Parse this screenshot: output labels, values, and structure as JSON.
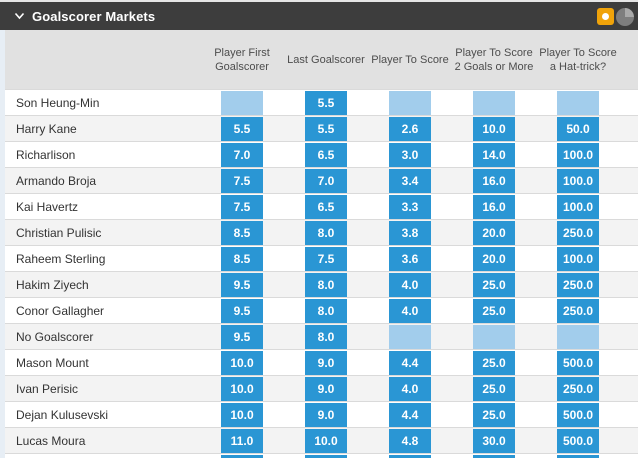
{
  "header": {
    "title": "Goalscorer Markets",
    "icons": [
      "chevron-down",
      "bet-boost-ball",
      "match-clock"
    ]
  },
  "table": {
    "columns": [
      "Player First Goalscorer",
      "Last Goalscorer",
      "Player To Score",
      "Player To Score 2 Goals or More",
      "Player To Score a Hat-trick?"
    ],
    "rows": [
      {
        "name": "Son Heung-Min",
        "odds": [
          null,
          "5.5",
          null,
          null,
          null
        ]
      },
      {
        "name": "Harry Kane",
        "odds": [
          "5.5",
          "5.5",
          "2.6",
          "10.0",
          "50.0"
        ]
      },
      {
        "name": "Richarlison",
        "odds": [
          "7.0",
          "6.5",
          "3.0",
          "14.0",
          "100.0"
        ]
      },
      {
        "name": "Armando Broja",
        "odds": [
          "7.5",
          "7.0",
          "3.4",
          "16.0",
          "100.0"
        ]
      },
      {
        "name": "Kai Havertz",
        "odds": [
          "7.5",
          "6.5",
          "3.3",
          "16.0",
          "100.0"
        ]
      },
      {
        "name": "Christian Pulisic",
        "odds": [
          "8.5",
          "8.0",
          "3.8",
          "20.0",
          "250.0"
        ]
      },
      {
        "name": "Raheem Sterling",
        "odds": [
          "8.5",
          "7.5",
          "3.6",
          "20.0",
          "100.0"
        ]
      },
      {
        "name": "Hakim Ziyech",
        "odds": [
          "9.5",
          "8.0",
          "4.0",
          "25.0",
          "250.0"
        ]
      },
      {
        "name": "Conor Gallagher",
        "odds": [
          "9.5",
          "8.0",
          "4.0",
          "25.0",
          "250.0"
        ]
      },
      {
        "name": "No Goalscorer",
        "odds": [
          "9.5",
          "8.0",
          null,
          null,
          null
        ]
      },
      {
        "name": "Mason Mount",
        "odds": [
          "10.0",
          "9.0",
          "4.4",
          "25.0",
          "500.0"
        ]
      },
      {
        "name": "Ivan Perisic",
        "odds": [
          "10.0",
          "9.0",
          "4.0",
          "25.0",
          "250.0"
        ]
      },
      {
        "name": "Dejan Kulusevski",
        "odds": [
          "10.0",
          "9.0",
          "4.4",
          "25.0",
          "500.0"
        ]
      },
      {
        "name": "Lucas Moura",
        "odds": [
          "11.0",
          "10.0",
          "4.8",
          "30.0",
          "500.0"
        ]
      }
    ],
    "partial_bottom_row": {
      "visible_cells": 5
    }
  },
  "colors": {
    "bar_background": "#3d3d3d",
    "odds_available": "#2a96d4",
    "odds_suspended": "#a2cdec",
    "row_alt": "#f3f3f3",
    "column_header_bg": "#e1e1e1",
    "boost_icon_yellow": "#f0a30a"
  }
}
